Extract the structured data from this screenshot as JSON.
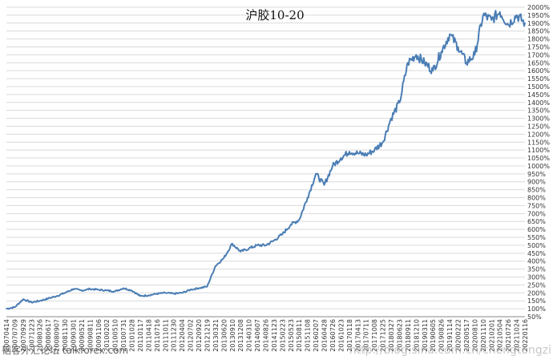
{
  "chart_data": {
    "type": "line",
    "title": "沪胶10-20",
    "y_unit": "%",
    "ylim": [
      50,
      2000
    ],
    "y_ticks": [
      50,
      100,
      150,
      200,
      250,
      300,
      350,
      400,
      450,
      500,
      550,
      600,
      650,
      700,
      750,
      800,
      850,
      900,
      950,
      1000,
      1050,
      1100,
      1150,
      1200,
      1250,
      1300,
      1350,
      1400,
      1450,
      1500,
      1550,
      1600,
      1650,
      1700,
      1750,
      1800,
      1850,
      1900,
      1950,
      2000
    ],
    "y_tick_labels": [
      "50%",
      "100%",
      "150%",
      "200%",
      "250%",
      "300%",
      "350%",
      "400%",
      "450%",
      "500%",
      "550%",
      "600%",
      "650%",
      "700%",
      "750%",
      "800%",
      "850%",
      "900%",
      "950%",
      "1000%",
      "1050%",
      "1100%",
      "1150%",
      "1200%",
      "1250%",
      "1300%",
      "1350%",
      "1400%",
      "1450%",
      "1500%",
      "1550%",
      "1600%",
      "1650%",
      "1700%",
      "1750%",
      "1800%",
      "1850%",
      "1900%",
      "1950%",
      "2000%"
    ],
    "x_tick_labels": [
      "20070414",
      "20070709",
      "20070929",
      "20071223",
      "20080326",
      "20080617",
      "20080907",
      "20081130",
      "20090301",
      "20090521",
      "20090811",
      "20091106",
      "20100202",
      "20100510",
      "20100731",
      "20101028",
      "20110117",
      "20110418",
      "20110716",
      "20111011",
      "20111230",
      "20120404",
      "20120702",
      "20120920",
      "20121219",
      "20130321",
      "20130620",
      "20130910",
      "20131208",
      "20140310",
      "20140607",
      "20140826",
      "20141123",
      "20150223",
      "20150523",
      "20150811",
      "20151108",
      "20160207",
      "20160428",
      "20160726",
      "20161023",
      "20170118",
      "20170413",
      "20170711",
      "20171008",
      "20171225",
      "20180327",
      "20180623",
      "20180911",
      "20181210",
      "20190311",
      "20190605",
      "20190826",
      "20191114",
      "20200222",
      "20200517",
      "20200810",
      "20201110",
      "20210201",
      "20210504",
      "20210726",
      "20211024",
      "20220116"
    ],
    "grid": "horizontal",
    "legend": "none",
    "line_color": "#4a7db4",
    "series": [
      {
        "name": "",
        "x": [
          0,
          1,
          2,
          3,
          4,
          5,
          6,
          7,
          8,
          9,
          10,
          11,
          12,
          13,
          14,
          15,
          16,
          17,
          18,
          19,
          20,
          21,
          22,
          23,
          24,
          25,
          26,
          27,
          28,
          29,
          30,
          31,
          32,
          33,
          34,
          35,
          36,
          37,
          38,
          39,
          40,
          41,
          42,
          43,
          44,
          45,
          46,
          47,
          48,
          49,
          50,
          51,
          52,
          53,
          54,
          55,
          56,
          57,
          58,
          59,
          60,
          61,
          62
        ],
        "values": [
          100,
          110,
          160,
          140,
          150,
          165,
          180,
          200,
          225,
          215,
          225,
          220,
          215,
          210,
          230,
          215,
          180,
          185,
          195,
          200,
          195,
          200,
          220,
          230,
          240,
          370,
          420,
          510,
          460,
          480,
          500,
          500,
          530,
          570,
          630,
          660,
          800,
          950,
          880,
          1000,
          1050,
          1090,
          1080,
          1070,
          1100,
          1150,
          1300,
          1400,
          1650,
          1700,
          1650,
          1600,
          1720,
          1830,
          1750,
          1650,
          1700,
          1950,
          1920,
          1970,
          1890,
          1950,
          1900
        ]
      }
    ]
  },
  "watermarks": {
    "bottom_left": "韬客外汇论坛 talkforex.com",
    "bottom_right": "http://blog.sina.com.cn/chengtongzi"
  }
}
